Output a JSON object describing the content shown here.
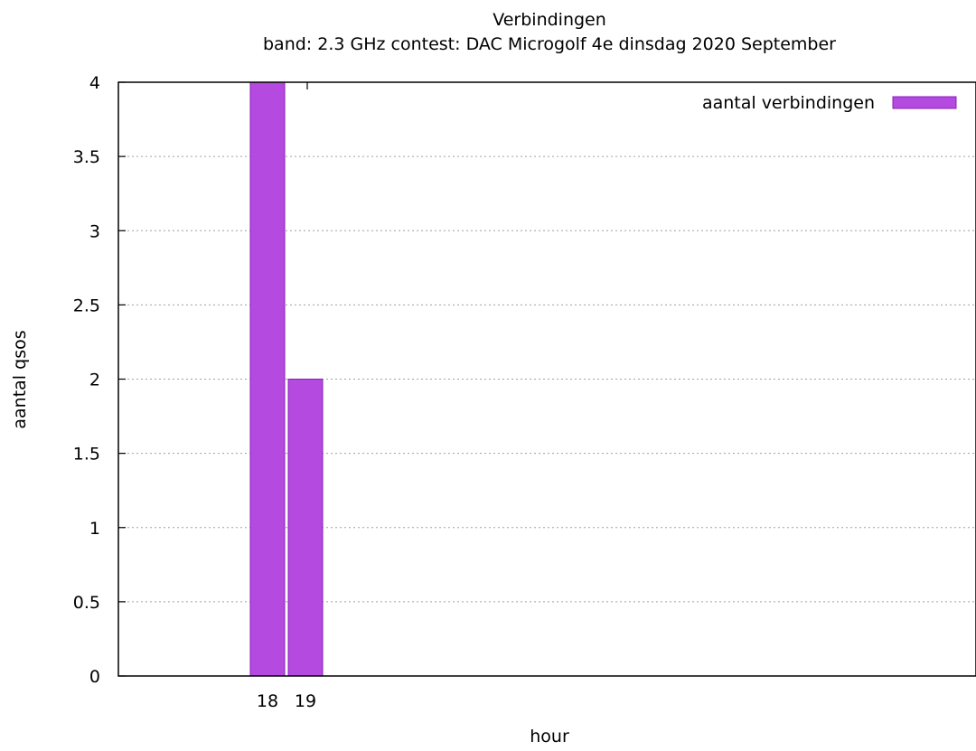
{
  "chart_data": {
    "type": "bar",
    "title": "Verbindingen",
    "subtitle": "band: 2.3 GHz  contest: DAC Microgolf 4e dinsdag 2020 September",
    "xlabel": "hour",
    "ylabel": "aantal qsos",
    "categories": [
      "18",
      "19"
    ],
    "series": [
      {
        "name": "aantal verbindingen",
        "values": [
          4,
          2
        ],
        "color": "#b44ae0"
      }
    ],
    "ylim": [
      0,
      4
    ],
    "yticks": [
      "0",
      "0.5",
      "1",
      "1.5",
      "2",
      "2.5",
      "3",
      "3.5",
      "4"
    ],
    "grid": "horizontal dotted",
    "legend_position": "top-right"
  }
}
